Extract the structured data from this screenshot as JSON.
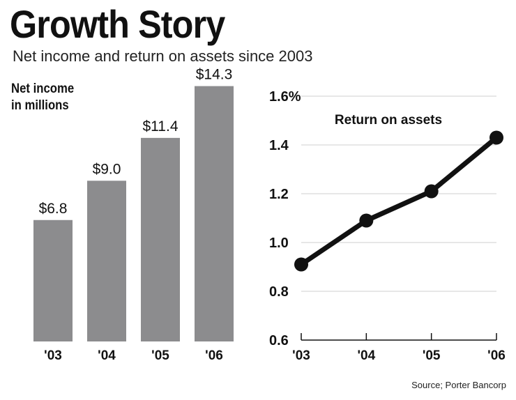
{
  "title": "Growth Story",
  "subtitle": "Net income and return on assets since 2003",
  "source": "Source; Porter Bancorp",
  "colors": {
    "bar": "#8c8c8e",
    "line": "#111111",
    "grid": "#cfcfcf",
    "axis": "#111111"
  },
  "chart_data": [
    {
      "type": "bar",
      "title": "Net income in millions",
      "ylabel_lines": [
        "Net income",
        "in millions"
      ],
      "categories": [
        "'03",
        "'04",
        "'05",
        "'06"
      ],
      "values": [
        6.8,
        9.0,
        11.4,
        14.3
      ],
      "data_labels": [
        "$6.8",
        "$9.0",
        "$11.4",
        "$14.3"
      ],
      "ylim": [
        0,
        16
      ],
      "grid": false,
      "legend": "none"
    },
    {
      "type": "line",
      "title": "Return on assets",
      "categories": [
        "'03",
        "'04",
        "'05",
        "'06"
      ],
      "values": [
        0.91,
        1.09,
        1.21,
        1.43
      ],
      "y_ticks": [
        0.6,
        0.8,
        1.0,
        1.2,
        1.4,
        1.6
      ],
      "y_tick_labels": [
        "0.6",
        "0.8",
        "1.0",
        "1.2",
        "1.4",
        "1.6%"
      ],
      "ylim": [
        0.6,
        1.6
      ],
      "grid": true,
      "legend": "none",
      "markers": true
    }
  ]
}
